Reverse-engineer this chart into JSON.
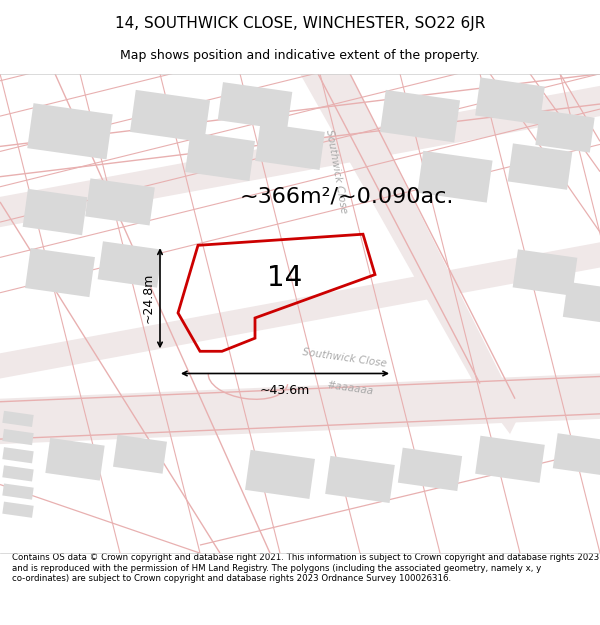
{
  "title": "14, SOUTHWICK CLOSE, WINCHESTER, SO22 6JR",
  "subtitle": "Map shows position and indicative extent of the property.",
  "area_label": "~366m²/~0.090ac.",
  "width_label": "~43.6m",
  "height_label": "~24.8m",
  "number_label": "14",
  "footer": "Contains OS data © Crown copyright and database right 2021. This information is subject to Crown copyright and database rights 2023 and is reproduced with the permission of HM Land Registry. The polygons (including the associated geometry, namely x, y co-ordinates) are subject to Crown copyright and database rights 2023 Ordnance Survey 100026316.",
  "bg_color": "#ffffff",
  "map_bg": "#f7f0f0",
  "building_color": "#d9d9d9",
  "road_line_color": "#e8b0b0",
  "property_color": "#cc0000",
  "property_lw": 2.0,
  "road_label_color": "#aaaaaa",
  "title_fontsize": 11,
  "subtitle_fontsize": 9,
  "area_fontsize": 16,
  "number_fontsize": 20,
  "dim_fontsize": 9,
  "road_fontsize": 7.5,
  "footer_fontsize": 6.2
}
